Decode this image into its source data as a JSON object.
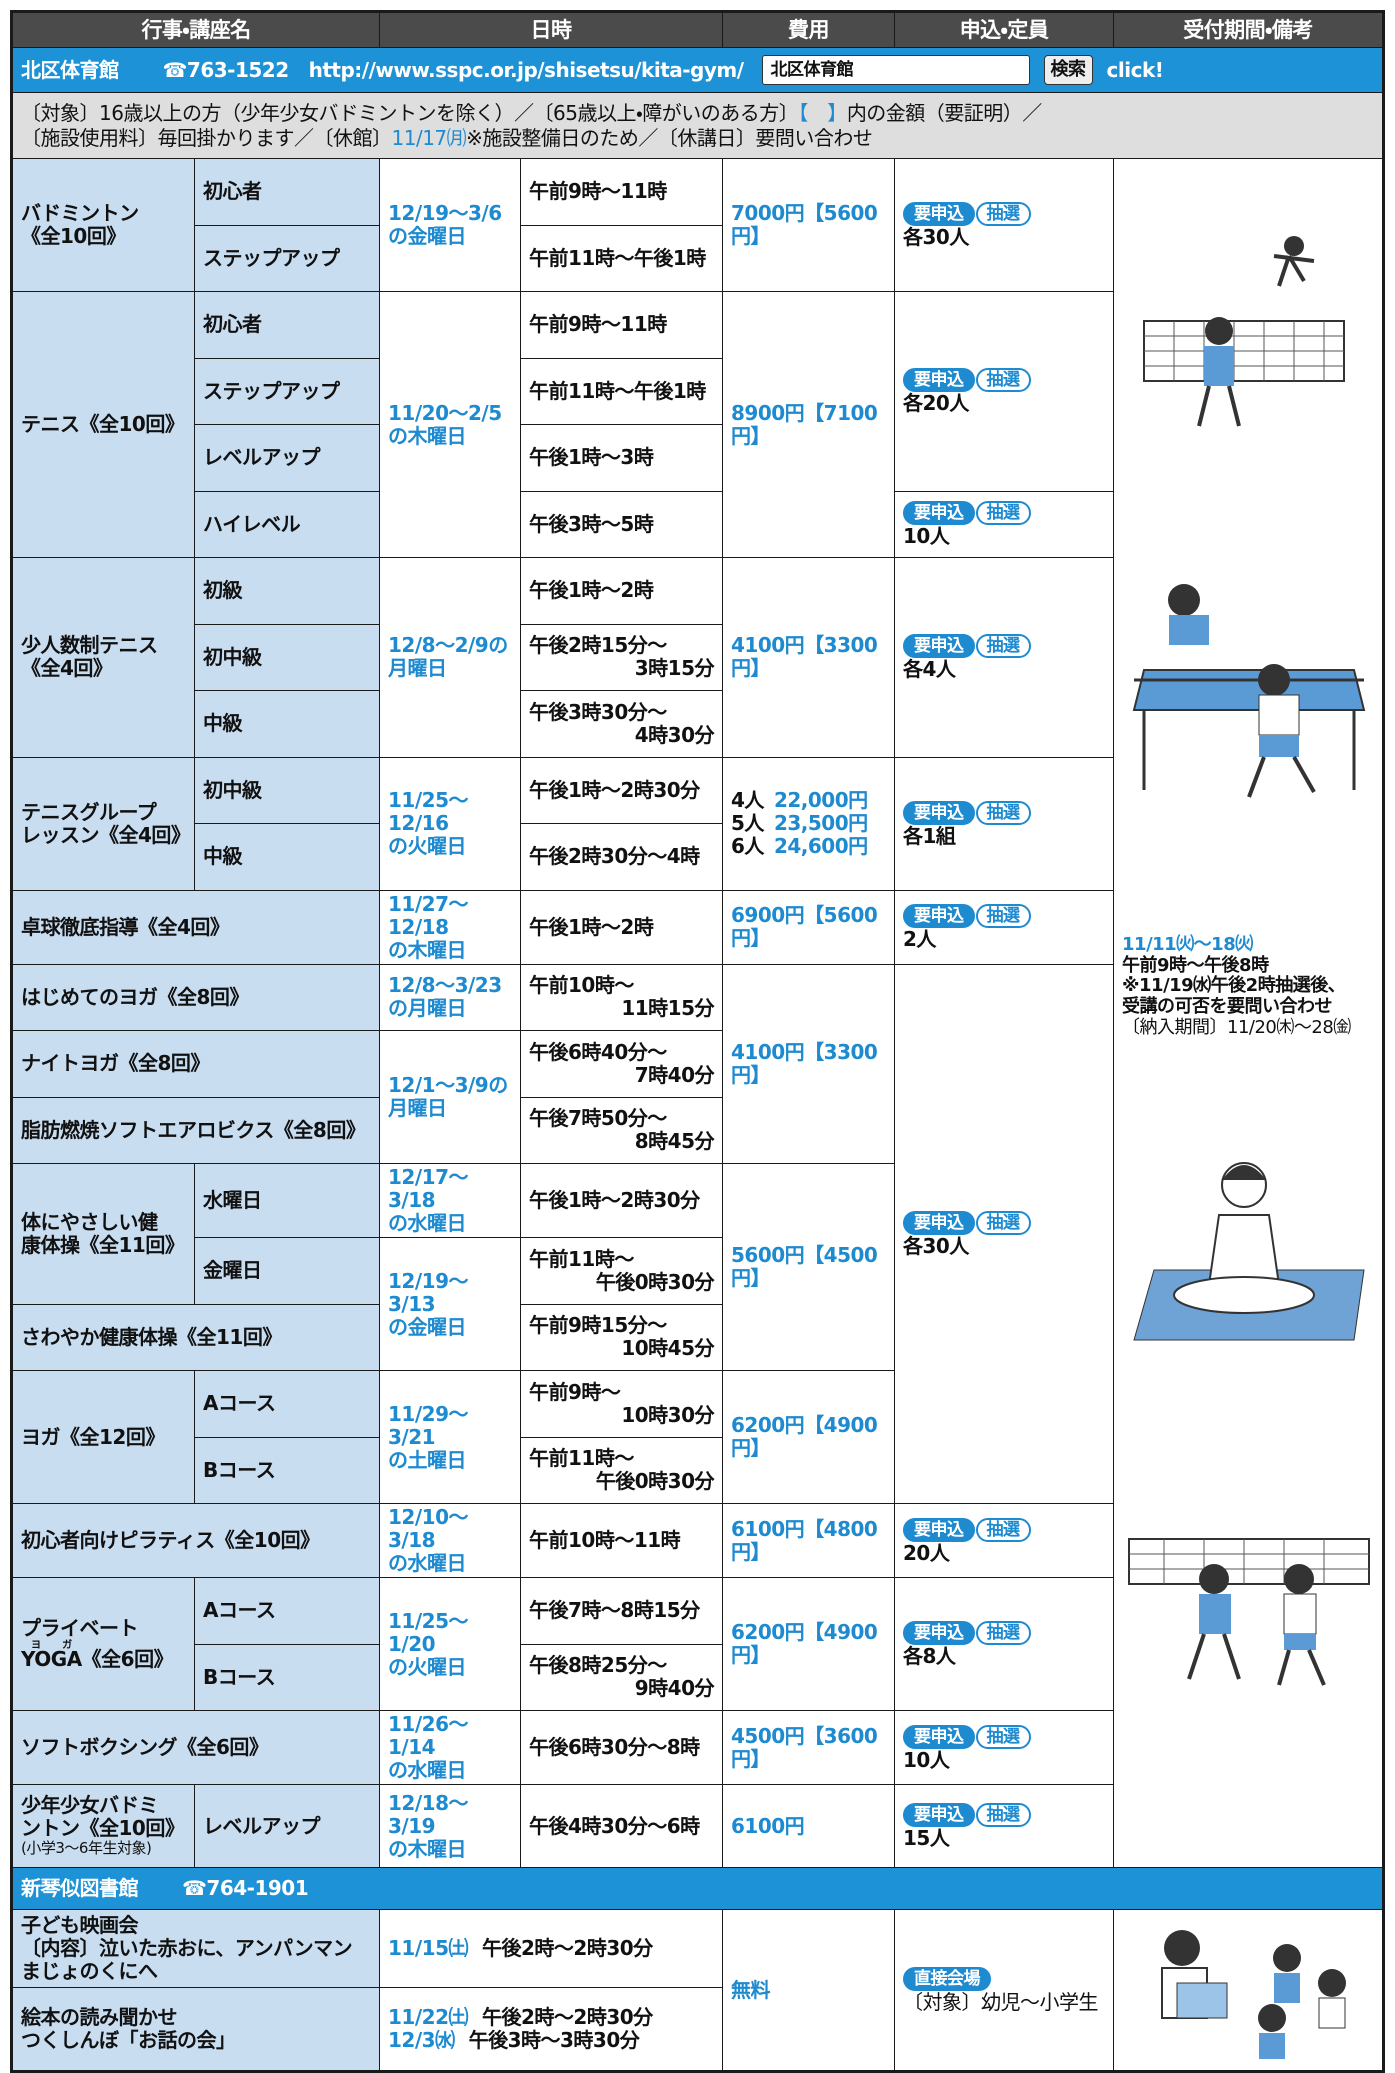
{
  "header": {
    "columns": [
      "行事・講座名",
      "日時",
      "費用",
      "申込・定員",
      "受付期間・備考"
    ]
  },
  "kita": {
    "name": "北区体育館",
    "phone": "☎763-1522",
    "url": "http://www.sspc.or.jp/shisetsu/kita-gym/",
    "search_input": "北区体育館",
    "search_button": "検索",
    "click": "click!",
    "notes": [
      [
        "〔対象〕16歳以上の方（少年少女バドミントンを除く）／〔65歳以上・障がいのある方〕",
        "【　】",
        "内の金額（要証明）／"
      ],
      [
        "〔施設使用料〕毎回掛かります／〔休館〕",
        "11/17㈪",
        "※施設整備日のため／〔休講日〕要問い合わせ"
      ]
    ],
    "rows": [
      {
        "name": [
          "バドミントン",
          "《全10回》"
        ],
        "level": "初心者",
        "date": [
          "12/19〜3/6",
          "の金曜日"
        ],
        "time": [
          "午前9時〜11時"
        ],
        "fee": "7000円【5600円】",
        "apply": {
          "tags": [
            "要申込",
            "抽選"
          ],
          "capacity": "各30人"
        }
      },
      {
        "level": "ステップアップ",
        "time": [
          "午前11時〜午後1時"
        ]
      },
      {
        "name": [
          "テニス《全10回》"
        ],
        "level": "初心者",
        "date": [
          "11/20〜2/5",
          "の木曜日"
        ],
        "time": [
          "午前9時〜11時"
        ],
        "fee": "8900円【7100円】",
        "apply": {
          "tags": [
            "要申込",
            "抽選"
          ],
          "capacity": "各20人"
        }
      },
      {
        "level": "ステップアップ",
        "time": [
          "午前11時〜午後1時"
        ]
      },
      {
        "level": "レベルアップ",
        "time": [
          "午後1時〜3時"
        ]
      },
      {
        "level": "ハイレベル",
        "time": [
          "午後3時〜5時"
        ],
        "apply": {
          "tags": [
            "要申込",
            "抽選"
          ],
          "capacity": "10人"
        }
      },
      {
        "name": [
          "少人数制テニス",
          "《全4回》"
        ],
        "level": "初級",
        "date": [
          "12/8〜2/9の",
          "月曜日"
        ],
        "time": [
          "午後1時〜2時"
        ],
        "fee": "4100円【3300円】",
        "apply": {
          "tags": [
            "要申込",
            "抽選"
          ],
          "capacity": "各4人"
        }
      },
      {
        "level": "初中級",
        "time": [
          "午後2時15分〜",
          "3時15分"
        ]
      },
      {
        "level": "中級",
        "time": [
          "午後3時30分〜",
          "4時30分"
        ]
      },
      {
        "name": [
          "テニスグループ",
          "レッスン《全4回》"
        ],
        "level": "初中級",
        "date": [
          "11/25〜12/16",
          "の火曜日"
        ],
        "time": [
          "午後1時〜2時30分"
        ],
        "fee": [
          [
            "4人",
            "22,000円"
          ],
          [
            "5人",
            "23,500円"
          ],
          [
            "6人",
            "24,600円"
          ]
        ],
        "apply": {
          "tags": [
            "要申込",
            "抽選"
          ],
          "capacity": "各1組"
        }
      },
      {
        "level": "中級",
        "time": [
          "午後2時30分〜4時"
        ]
      },
      {
        "name": [
          "卓球徹底指導《全4回》"
        ],
        "date": [
          "11/27〜12/18",
          "の木曜日"
        ],
        "time": [
          "午後1時〜2時"
        ],
        "fee": "6900円【5600円】",
        "apply": {
          "tags": [
            "要申込",
            "抽選"
          ],
          "capacity": "2人"
        }
      },
      {
        "name": [
          "はじめてのヨガ《全8回》"
        ],
        "date": [
          "12/8〜3/23",
          "の月曜日"
        ],
        "time": [
          "午前10時〜",
          "11時15分"
        ],
        "fee": "4100円【3300円】",
        "apply": {
          "tags": [
            "要申込",
            "抽選"
          ],
          "capacity": "各30人"
        }
      },
      {
        "name": [
          "ナイトヨガ《全8回》"
        ],
        "date": [
          "12/1〜3/9の",
          "月曜日"
        ],
        "time": [
          "午後6時40分〜",
          "7時40分"
        ]
      },
      {
        "name": [
          "脂肪燃焼ソフトエアロビクス《全8回》"
        ],
        "time": [
          "午後7時50分〜",
          "8時45分"
        ]
      },
      {
        "name": [
          "体にやさしい健",
          "康体操《全11回》"
        ],
        "level": "水曜日",
        "date": [
          "12/17〜3/18",
          "の水曜日"
        ],
        "time": [
          "午後1時〜2時30分"
        ],
        "fee": "5600円【4500円】"
      },
      {
        "level": "金曜日",
        "date": [
          "12/19〜3/13",
          "の金曜日"
        ],
        "time": [
          "午前11時〜",
          "午後0時30分"
        ]
      },
      {
        "name": [
          "さわやか健康体操《全11回》"
        ],
        "time": [
          "午前9時15分〜",
          "10時45分"
        ]
      },
      {
        "name": [
          "ヨガ《全12回》"
        ],
        "level": "Aコース",
        "date": [
          "11/29〜3/21",
          "の土曜日"
        ],
        "time": [
          "午前9時〜",
          "10時30分"
        ],
        "fee": "6200円【4900円】"
      },
      {
        "level": "Bコース",
        "time": [
          "午前11時〜",
          "午後0時30分"
        ]
      },
      {
        "name": [
          "初心者向けピラティス《全10回》"
        ],
        "date": [
          "12/10〜3/18",
          "の水曜日"
        ],
        "time": [
          "午前10時〜11時"
        ],
        "fee": "6100円【4800円】",
        "apply": {
          "tags": [
            "要申込",
            "抽選"
          ],
          "capacity": "20人"
        }
      },
      {
        "name": [
          "プライベート",
          {
            "base": "YOGA",
            "ruby": "ヨガ",
            "rest": "《全6回》"
          }
        ],
        "level": "Aコース",
        "date": [
          "11/25〜1/20",
          "の火曜日"
        ],
        "time": [
          "午後7時〜8時15分"
        ],
        "fee": "6200円【4900円】",
        "apply": {
          "tags": [
            "要申込",
            "抽選"
          ],
          "capacity": "各8人"
        }
      },
      {
        "level": "Bコース",
        "time": [
          "午後8時25分〜",
          "9時40分"
        ]
      },
      {
        "name": [
          "ソフトボクシング《全6回》"
        ],
        "date": [
          "11/26〜1/14",
          "の水曜日"
        ],
        "time": [
          "午後6時30分〜8時"
        ],
        "fee": "4500円【3600円】",
        "apply": {
          "tags": [
            "要申込",
            "抽選"
          ],
          "capacity": "10人"
        }
      },
      {
        "name": [
          "少年少女バドミ",
          "ントン《全10回》"
        ],
        "name_note": "(小学3〜6年生対象)",
        "level": "レベルアップ",
        "date": [
          "12/18〜3/19",
          "の木曜日"
        ],
        "time": [
          "午後4時30分〜6時"
        ],
        "fee": "6100円",
        "apply": {
          "tags": [
            "要申込",
            "抽選"
          ],
          "capacity": "15人"
        }
      }
    ],
    "reception": {
      "period": "11/11㈫〜18㈫",
      "hours": "午前9時〜午後8時",
      "lottery": [
        "※11/19㈬午後2時抽選後、",
        "受講の可否を要問い合わせ"
      ],
      "payment": "〔納入期間〕11/20㈭〜28㈮"
    }
  },
  "library": {
    "name": "新琴似図書館",
    "phone": "☎764-1901",
    "rows": [
      {
        "title": [
          "子ども映画会",
          "〔内容〕泣いた赤おに、アンパンマンまじょのくにへ"
        ],
        "schedule": [
          {
            "date": "11/15㈯",
            "time": "午後2時〜2時30分"
          }
        ]
      },
      {
        "title": [
          "絵本の読み聞かせ",
          "つくしんぼ「お話の会」"
        ],
        "schedule": [
          {
            "date": "11/22㈯",
            "time": "午後2時〜2時30分"
          },
          {
            "date": "12/3㈬",
            "time": "午後3時〜3時30分"
          }
        ]
      }
    ],
    "fee": "無料",
    "apply": {
      "tags": [
        "直接会場"
      ],
      "capacity": "〔対象〕幼児〜小学生"
    }
  }
}
